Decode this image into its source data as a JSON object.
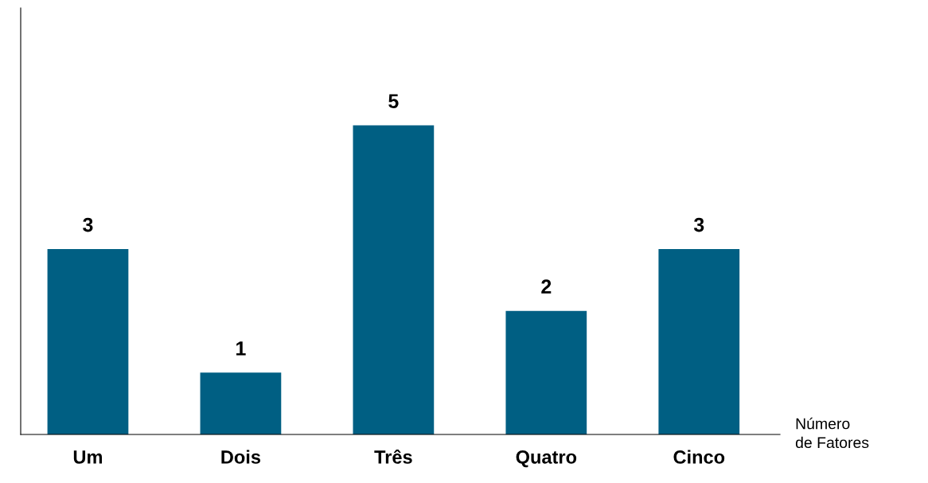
{
  "chart_data": {
    "type": "bar",
    "xlabel": "Número\nde Fatores",
    "categories": [
      "Um",
      "Dois",
      "Três",
      "Quatro",
      "Cinco"
    ],
    "values": [
      3,
      1,
      5,
      2,
      3
    ],
    "color": "#005f83",
    "ylim": [
      0,
      6.9
    ],
    "data_labels": true,
    "tick_labels": "x",
    "grid": false,
    "legend": false
  }
}
